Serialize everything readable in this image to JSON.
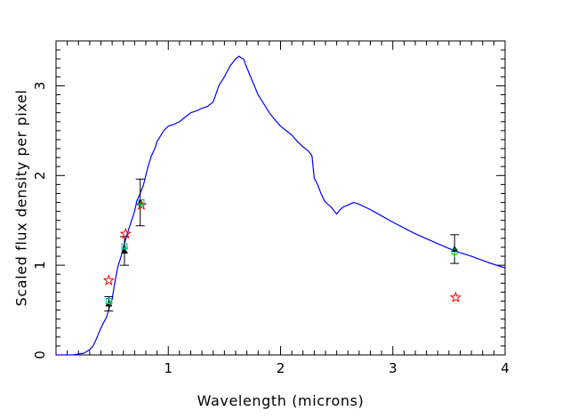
{
  "chart_data": {
    "type": "line",
    "title": "",
    "xlabel": "Wavelength (microns)",
    "ylabel": "Scaled flux density per pixel",
    "xlim": [
      0.0,
      4.0
    ],
    "ylim": [
      0.0,
      3.5
    ],
    "grid": false,
    "legend": "none",
    "x_ticks": [
      1,
      2,
      3,
      4
    ],
    "x_tick_labels": [
      "1",
      "2",
      "3",
      "4"
    ],
    "y_ticks": [
      0,
      1,
      2,
      3
    ],
    "y_tick_labels": [
      "0",
      "1",
      "2",
      "3"
    ],
    "x_minor_step": 0.1,
    "y_minor_step": 0.1,
    "series": [
      {
        "kind": "line",
        "color": "#0000ff",
        "x": [
          0.0,
          0.15,
          0.25,
          0.3,
          0.33,
          0.36,
          0.38,
          0.4,
          0.42,
          0.45,
          0.48,
          0.5,
          0.52,
          0.55,
          0.58,
          0.6,
          0.63,
          0.66,
          0.7,
          0.72,
          0.75,
          0.78,
          0.8,
          0.82,
          0.85,
          0.88,
          0.9,
          0.93,
          0.96,
          1.0,
          1.05,
          1.1,
          1.15,
          1.2,
          1.25,
          1.3,
          1.35,
          1.4,
          1.45,
          1.5,
          1.55,
          1.6,
          1.63,
          1.65,
          1.67,
          1.7,
          1.75,
          1.8,
          1.85,
          1.9,
          1.95,
          2.0,
          2.05,
          2.1,
          2.15,
          2.2,
          2.25,
          2.28,
          2.3,
          2.33,
          2.36,
          2.39,
          2.42,
          2.45,
          2.48,
          2.5,
          2.53,
          2.56,
          2.6,
          2.65,
          2.7,
          2.8,
          2.9,
          3.0,
          3.2,
          3.4,
          3.55,
          3.7,
          3.85,
          4.0
        ],
        "y": [
          0.0,
          0.0,
          0.02,
          0.06,
          0.1,
          0.18,
          0.24,
          0.3,
          0.35,
          0.42,
          0.55,
          0.62,
          0.78,
          0.98,
          1.1,
          1.2,
          1.33,
          1.45,
          1.6,
          1.72,
          1.8,
          1.9,
          2.0,
          2.1,
          2.22,
          2.3,
          2.38,
          2.44,
          2.5,
          2.55,
          2.57,
          2.6,
          2.65,
          2.7,
          2.72,
          2.75,
          2.77,
          2.82,
          3.0,
          3.1,
          3.22,
          3.3,
          3.33,
          3.31,
          3.3,
          3.2,
          3.05,
          2.9,
          2.8,
          2.7,
          2.62,
          2.55,
          2.5,
          2.45,
          2.38,
          2.32,
          2.27,
          2.22,
          1.97,
          1.9,
          1.8,
          1.72,
          1.68,
          1.65,
          1.6,
          1.57,
          1.62,
          1.65,
          1.67,
          1.7,
          1.68,
          1.62,
          1.55,
          1.48,
          1.35,
          1.24,
          1.16,
          1.1,
          1.03,
          0.97
        ]
      },
      {
        "name": "",
        "kind": "errorbar",
        "color": "#000000",
        "marker": "filled-triangle",
        "x": [
          0.47,
          0.61,
          0.75,
          3.55
        ],
        "y": [
          0.57,
          1.16,
          1.7,
          1.18
        ],
        "yerr": [
          0.08,
          0.16,
          0.26,
          0.16
        ]
      },
      {
        "kind": "scatter",
        "color": "#ff0000",
        "marker": "open-star",
        "x": [
          0.47,
          0.62,
          0.76,
          3.56
        ],
        "y": [
          0.83,
          1.35,
          1.67,
          0.64
        ]
      },
      {
        "kind": "scatter",
        "color": "#00aaaa",
        "marker": "open-square",
        "x": [
          0.47,
          0.61,
          0.76,
          3.55
        ],
        "y": [
          0.6,
          1.21,
          1.7,
          1.15
        ]
      },
      {
        "kind": "scatter",
        "color": "#00cc00",
        "marker": "plus",
        "x": [
          0.48,
          0.62,
          0.76,
          3.55
        ],
        "y": [
          0.58,
          1.19,
          1.68,
          1.12
        ]
      }
    ]
  }
}
